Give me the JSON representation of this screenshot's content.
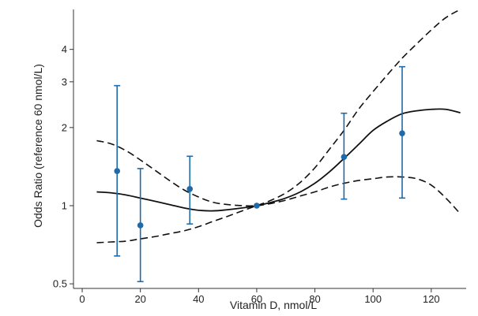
{
  "chart_data": {
    "type": "line",
    "title": "",
    "xlabel": "Vitamin D, nmol/L",
    "ylabel": "Odds Ratio (reference 60 nmol/L)",
    "xlim": [
      -3,
      132
    ],
    "ylim": [
      0.48,
      5.7
    ],
    "yscale": "log",
    "xticks": [
      0,
      20,
      40,
      60,
      80,
      100,
      120
    ],
    "yticks": [
      0.5,
      1,
      2,
      3,
      4
    ],
    "grid": false,
    "legend": "none",
    "series": [
      {
        "style": "solid",
        "x": [
          5,
          10,
          15,
          20,
          25,
          30,
          35,
          40,
          45,
          50,
          55,
          60,
          65,
          70,
          75,
          80,
          85,
          90,
          95,
          100,
          105,
          110,
          115,
          120,
          125,
          130
        ],
        "y": [
          1.13,
          1.12,
          1.1,
          1.07,
          1.04,
          1.01,
          0.98,
          0.96,
          0.955,
          0.965,
          0.98,
          1.0,
          1.03,
          1.07,
          1.13,
          1.22,
          1.35,
          1.52,
          1.72,
          1.95,
          2.12,
          2.26,
          2.32,
          2.35,
          2.35,
          2.28
        ]
      },
      {
        "style": "dashed",
        "x": [
          5,
          10,
          15,
          20,
          25,
          30,
          35,
          40,
          45,
          50,
          55,
          60,
          65,
          70,
          75,
          80,
          85,
          90,
          95,
          100,
          105,
          110,
          115,
          120,
          125,
          130
        ],
        "y": [
          1.78,
          1.73,
          1.63,
          1.5,
          1.37,
          1.25,
          1.15,
          1.08,
          1.03,
          1.01,
          1.0,
          1.0,
          1.02,
          1.05,
          1.09,
          1.13,
          1.18,
          1.22,
          1.25,
          1.27,
          1.29,
          1.29,
          1.27,
          1.2,
          1.07,
          0.93
        ]
      },
      {
        "style": "dashed",
        "x": [
          5,
          10,
          15,
          20,
          25,
          30,
          35,
          40,
          45,
          50,
          55,
          60,
          65,
          70,
          75,
          80,
          85,
          90,
          95,
          100,
          105,
          110,
          115,
          120,
          125,
          130
        ],
        "y": [
          0.72,
          0.725,
          0.73,
          0.745,
          0.76,
          0.78,
          0.8,
          0.83,
          0.87,
          0.91,
          0.955,
          1.0,
          1.05,
          1.12,
          1.23,
          1.4,
          1.65,
          1.95,
          2.35,
          2.75,
          3.2,
          3.7,
          4.2,
          4.75,
          5.3,
          5.7
        ]
      },
      {
        "type": "errorbar",
        "color": "#1f6aa8",
        "x": [
          12,
          20,
          37,
          60,
          90,
          110
        ],
        "y": [
          1.36,
          0.84,
          1.16,
          1.0,
          1.54,
          1.9
        ],
        "lower": [
          0.64,
          0.51,
          0.85,
          1.0,
          1.06,
          1.07
        ],
        "upper": [
          2.9,
          1.39,
          1.55,
          1.0,
          2.27,
          3.43
        ]
      }
    ]
  }
}
